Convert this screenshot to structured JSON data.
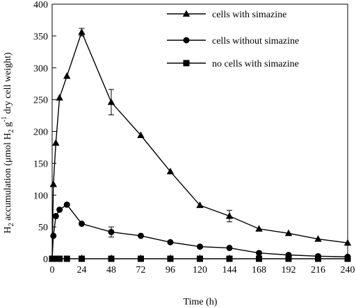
{
  "chart_data": {
    "type": "line",
    "xlabel": "Time (h)",
    "ylabel": {
      "prefix": "H",
      "sub1": "2",
      "middle": " accumulation (μmol H",
      "sub2": "2",
      "g": " g",
      "sup": "-1",
      "suffix": "  dry cell weight)"
    },
    "xlim": [
      0,
      240
    ],
    "ylim": [
      0,
      400
    ],
    "xticks": [
      0,
      24,
      48,
      72,
      96,
      120,
      144,
      168,
      192,
      216,
      240
    ],
    "yticks": [
      0,
      50,
      100,
      150,
      200,
      250,
      300,
      350,
      400
    ],
    "grid": false,
    "legend_position": "top-right",
    "series": [
      {
        "name": "cells with simazine",
        "marker": "triangle",
        "x": [
          0,
          1,
          3,
          6,
          12,
          24,
          48,
          72,
          96,
          120,
          144,
          168,
          192,
          216,
          240
        ],
        "y": [
          0,
          117,
          182,
          253,
          287,
          356,
          246,
          194,
          137,
          84,
          67,
          47,
          40,
          31,
          25
        ],
        "err": [
          0,
          0,
          0,
          0,
          0,
          6,
          20,
          0,
          0,
          0,
          9,
          0,
          0,
          0,
          0
        ]
      },
      {
        "name": "cells without simazine",
        "marker": "circle",
        "x": [
          0,
          1,
          3,
          6,
          12,
          24,
          48,
          72,
          96,
          120,
          144,
          168,
          192,
          216,
          240
        ],
        "y": [
          0,
          36,
          67,
          77,
          85,
          55,
          42,
          36,
          26,
          19,
          17,
          9,
          6,
          4,
          3
        ],
        "err": [
          0,
          0,
          0,
          0,
          0,
          0,
          8,
          0,
          0,
          0,
          0,
          0,
          0,
          0,
          0
        ]
      },
      {
        "name": "no cells with simazine",
        "marker": "square",
        "x": [
          0,
          1,
          3,
          6,
          12,
          24,
          48,
          72,
          96,
          120,
          144,
          168,
          192,
          216,
          240
        ],
        "y": [
          0,
          0,
          0,
          0,
          0,
          0,
          0,
          0,
          0,
          0,
          0,
          0,
          0,
          0,
          0
        ],
        "err": [
          0,
          0,
          0,
          0,
          0,
          0,
          0,
          0,
          0,
          0,
          0,
          0,
          0,
          0,
          0
        ]
      }
    ]
  }
}
